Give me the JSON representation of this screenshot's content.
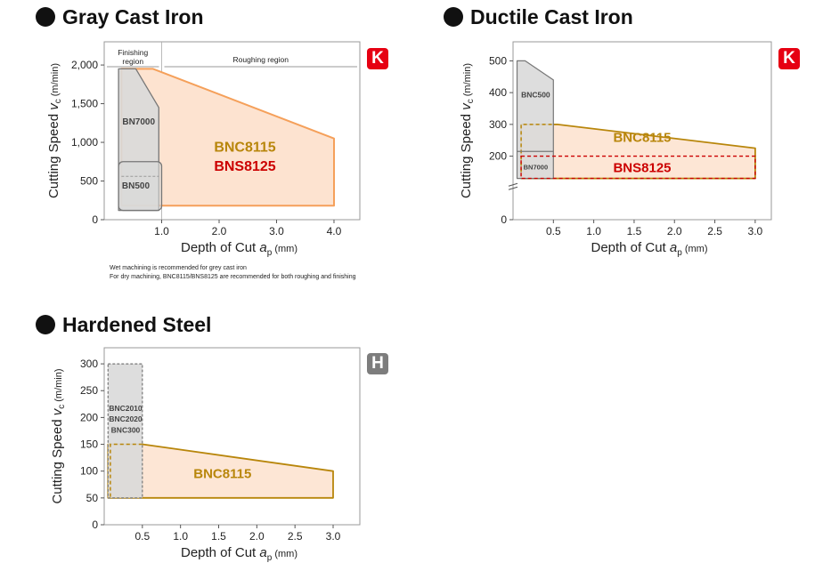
{
  "colors": {
    "orange_fill": "#fde3d0",
    "orange_line": "#f5a05a",
    "gold_line": "#b8860b",
    "gold_fill": "#fde6d5",
    "gray_fill": "#d9d9d9",
    "gray_line": "#777777",
    "red_dash": "#cc0000",
    "k_badge": "#e60012",
    "h_badge": "#7d7d7d"
  },
  "gray": {
    "title": "Gray Cast Iron",
    "badge": "K",
    "note_line1": "Wet machining is recommended for grey cast iron",
    "note_line2": "For dry machining, BNC8115/BNS8125 are recommended for both roughing and finishing"
  },
  "ductile": {
    "title": "Ductile Cast Iron",
    "badge": "K"
  },
  "hardened": {
    "title": "Hardened Steel",
    "badge": "H"
  },
  "chart_data": [
    {
      "type": "area",
      "title": "Gray Cast Iron",
      "xlabel": "Depth of Cut ap (mm)",
      "ylabel": "Cutting Speed Vc (m/min)",
      "xlim": [
        0,
        4.45
      ],
      "ylim": [
        0,
        2300
      ],
      "xticks": [
        1.0,
        2.0,
        3.0,
        4.0
      ],
      "xtick_labels": [
        "1.0",
        "2.0",
        "3.0",
        "4.0"
      ],
      "yticks": [
        0,
        500,
        1000,
        1500,
        2000
      ],
      "ytick_labels": [
        "0",
        "500",
        "1,000",
        "1,500",
        "2,000"
      ],
      "region_labels": [
        "Finishing region",
        "Roughing region"
      ],
      "region_split_x": 1.0,
      "grid": false,
      "series": [
        {
          "name": "BNC8115",
          "style": "orange_solid",
          "points": [
            [
              0.3,
              180
            ],
            [
              0.3,
              1950
            ],
            [
              0.85,
              1950
            ],
            [
              4.0,
              1050
            ],
            [
              4.0,
              180
            ]
          ]
        },
        {
          "name": "BNS8125",
          "style": "orange_solid",
          "points": [
            [
              0.3,
              180
            ],
            [
              0.3,
              1950
            ],
            [
              0.85,
              1950
            ],
            [
              4.0,
              1050
            ],
            [
              4.0,
              180
            ]
          ]
        },
        {
          "name": "BN7000",
          "style": "gray_solid",
          "points": [
            [
              0.25,
              120
            ],
            [
              0.25,
              1950
            ],
            [
              0.55,
              1950
            ],
            [
              0.95,
              1450
            ],
            [
              0.95,
              120
            ]
          ]
        },
        {
          "name": "BN500",
          "style": "gray_solid",
          "points": [
            [
              0.25,
              120
            ],
            [
              0.25,
              750
            ],
            [
              1.0,
              750
            ],
            [
              1.0,
              120
            ]
          ]
        }
      ],
      "labels": [
        "BNC8115",
        "BNS8125",
        "BN7000",
        "BN500"
      ]
    },
    {
      "type": "area",
      "title": "Ductile Cast Iron",
      "xlabel": "Depth of Cut ap (mm)",
      "ylabel": "Cutting Speed Vc (m/min)",
      "xlim": [
        0,
        3.2
      ],
      "ylim": [
        0,
        560
      ],
      "xticks": [
        0.5,
        1.0,
        1.5,
        2.0,
        2.5,
        3.0
      ],
      "xtick_labels": [
        "0.5",
        "1.0",
        "1.5",
        "2.0",
        "2.5",
        "3.0"
      ],
      "yticks": [
        0,
        200,
        300,
        400,
        500
      ],
      "ytick_labels": [
        "0",
        "200",
        "300",
        "400",
        "500"
      ],
      "axis_break": true,
      "grid": false,
      "series": [
        {
          "name": "BNC8115",
          "style": "gold_solid",
          "points": [
            [
              0.1,
              130
            ],
            [
              0.1,
              300
            ],
            [
              0.55,
              300
            ],
            [
              3.0,
              225
            ],
            [
              3.0,
              130
            ]
          ]
        },
        {
          "name": "BNS8125",
          "style": "red_dashed",
          "points": [
            [
              0.1,
              130
            ],
            [
              0.1,
              200
            ],
            [
              3.0,
              200
            ],
            [
              3.0,
              130
            ]
          ]
        },
        {
          "name": "BNC500",
          "style": "gray_solid",
          "points": [
            [
              0.05,
              130
            ],
            [
              0.05,
              500
            ],
            [
              0.15,
              500
            ],
            [
              0.5,
              440
            ],
            [
              0.5,
              130
            ]
          ]
        },
        {
          "name": "BN7000",
          "style": "gray_solid",
          "points": [
            [
              0.05,
              130
            ],
            [
              0.05,
              215
            ],
            [
              0.5,
              215
            ],
            [
              0.5,
              130
            ]
          ]
        }
      ],
      "labels": [
        "BNC8115",
        "BNS8125",
        "BNC500",
        "BN7000"
      ]
    },
    {
      "type": "area",
      "title": "Hardened Steel",
      "xlabel": "Depth of Cut ap (mm)",
      "ylabel": "Cutting Speed Vc (m/min)",
      "xlim": [
        0,
        3.35
      ],
      "ylim": [
        0,
        330
      ],
      "xticks": [
        0.5,
        1.0,
        1.5,
        2.0,
        2.5,
        3.0
      ],
      "xtick_labels": [
        "0.5",
        "1.0",
        "1.5",
        "2.0",
        "2.5",
        "3.0"
      ],
      "yticks": [
        0,
        50,
        100,
        150,
        200,
        250,
        300
      ],
      "ytick_labels": [
        "0",
        "50",
        "100",
        "150",
        "200",
        "250",
        "300"
      ],
      "grid": false,
      "series": [
        {
          "name": "BNC8115",
          "style": "gold_solid",
          "points": [
            [
              0.05,
              50
            ],
            [
              0.05,
              150
            ],
            [
              0.5,
              150
            ],
            [
              3.0,
              100
            ],
            [
              3.0,
              50
            ]
          ]
        },
        {
          "name": "BNC2010/BNC2020/BNC300",
          "style": "gray_dashed",
          "points": [
            [
              0.05,
              50
            ],
            [
              0.05,
              300
            ],
            [
              0.5,
              300
            ],
            [
              0.5,
              50
            ]
          ]
        }
      ],
      "labels": [
        "BNC8115",
        "BNC2010",
        "BNC2020",
        "BNC300"
      ]
    }
  ]
}
